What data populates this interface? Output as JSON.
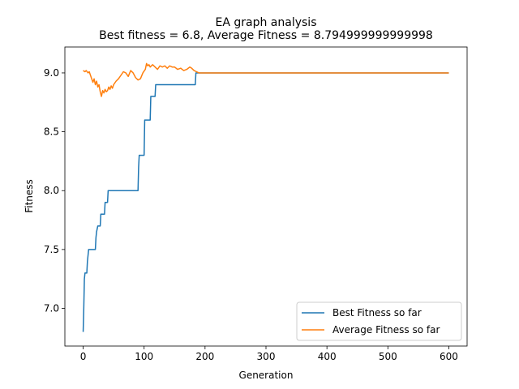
{
  "chart_data": {
    "type": "line",
    "title": "EA graph analysis",
    "subtitle": "Best fitness = 6.8, Average Fitness = 8.794999999999998",
    "xlabel": "Generation",
    "ylabel": "Fitness",
    "xlim": [
      -30,
      630
    ],
    "ylim": [
      6.68,
      9.22
    ],
    "xticks": [
      0,
      100,
      200,
      300,
      400,
      500,
      600
    ],
    "yticks": [
      7.0,
      7.5,
      8.0,
      8.5,
      9.0
    ],
    "xtick_labels": [
      "0",
      "100",
      "200",
      "300",
      "400",
      "500",
      "600"
    ],
    "ytick_labels": [
      "7.0",
      "7.5",
      "8.0",
      "8.5",
      "9.0"
    ],
    "grid": false,
    "legend_position": "lower-right",
    "series": [
      {
        "name": "Best Fitness so far",
        "color": "#1f77b4",
        "x": [
          0,
          1,
          2,
          3,
          4,
          6,
          7,
          8,
          9,
          10,
          11,
          13,
          14,
          20,
          21,
          22,
          24,
          25,
          28,
          29,
          35,
          36,
          40,
          41,
          90,
          91,
          92,
          93,
          100,
          101,
          110,
          111,
          118,
          119,
          127,
          128,
          184,
          185,
          600
        ],
        "y": [
          6.8,
          7.0,
          7.25,
          7.3,
          7.3,
          7.3,
          7.4,
          7.45,
          7.5,
          7.5,
          7.5,
          7.5,
          7.5,
          7.5,
          7.6,
          7.65,
          7.7,
          7.7,
          7.7,
          7.8,
          7.8,
          7.9,
          7.9,
          8.0,
          8.0,
          8.2,
          8.3,
          8.3,
          8.3,
          8.6,
          8.6,
          8.8,
          8.8,
          8.9,
          8.9,
          8.9,
          8.9,
          9.0,
          9.0
        ]
      },
      {
        "name": "Average Fitness so far",
        "color": "#ff7f0e",
        "x": [
          0,
          3,
          5,
          8,
          10,
          12,
          14,
          16,
          18,
          20,
          22,
          24,
          26,
          28,
          30,
          32,
          34,
          36,
          38,
          40,
          42,
          44,
          46,
          48,
          50,
          54,
          58,
          62,
          66,
          70,
          74,
          78,
          82,
          86,
          90,
          94,
          98,
          102,
          104,
          106,
          108,
          110,
          114,
          118,
          122,
          126,
          130,
          134,
          138,
          142,
          146,
          150,
          155,
          160,
          165,
          170,
          175,
          178,
          182,
          186,
          190,
          200,
          600
        ],
        "y": [
          9.02,
          9.01,
          9.02,
          9.0,
          9.01,
          8.98,
          8.95,
          8.92,
          8.95,
          8.9,
          8.93,
          8.88,
          8.9,
          8.84,
          8.8,
          8.85,
          8.83,
          8.86,
          8.84,
          8.85,
          8.88,
          8.86,
          8.89,
          8.87,
          8.9,
          8.93,
          8.95,
          8.98,
          9.01,
          9.0,
          8.97,
          9.02,
          9.0,
          8.96,
          8.94,
          8.95,
          9.0,
          9.03,
          9.08,
          9.06,
          9.07,
          9.05,
          9.07,
          9.05,
          9.03,
          9.06,
          9.05,
          9.06,
          9.04,
          9.06,
          9.05,
          9.05,
          9.03,
          9.04,
          9.02,
          9.03,
          9.05,
          9.04,
          9.02,
          9.01,
          9.0,
          9.0,
          9.0
        ]
      }
    ]
  }
}
